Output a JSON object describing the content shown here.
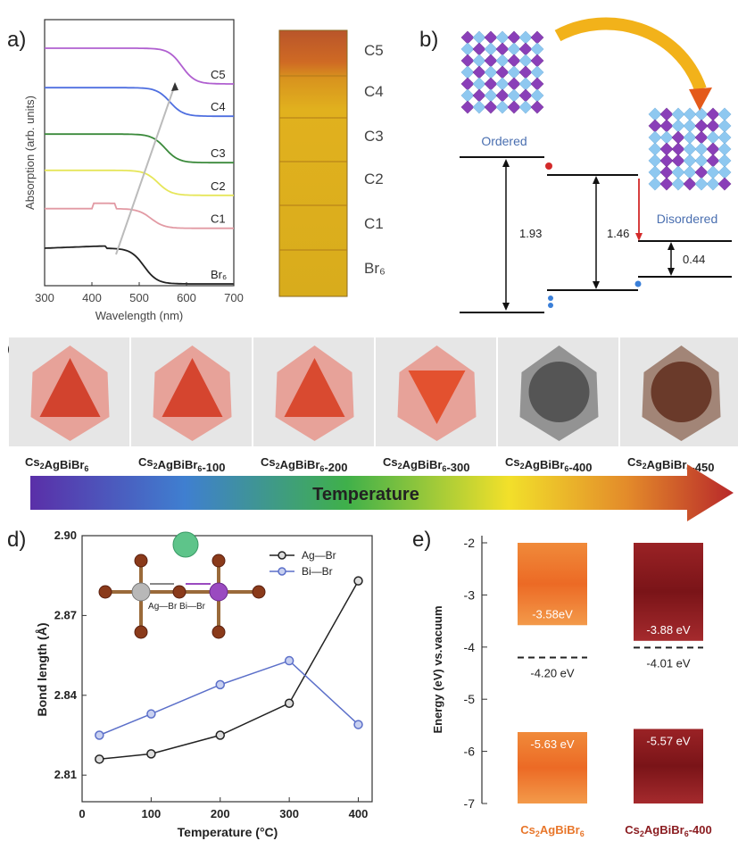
{
  "panels": {
    "a": "a)",
    "b": "b)",
    "c": "c)",
    "d": "d)",
    "e": "e)"
  },
  "chart_data": [
    {
      "id": "a",
      "type": "line",
      "xlabel": "Wavelength (nm)",
      "ylabel": "Absorption (arb. units)",
      "xlim": [
        300,
        700
      ],
      "xticks": [
        "300",
        "400",
        "500",
        "600",
        "700"
      ],
      "series": [
        {
          "name": "Br6",
          "label_display": "Br₆",
          "color": "#222222"
        },
        {
          "name": "C1",
          "label_display": "C1",
          "color": "#e29aa4"
        },
        {
          "name": "C2",
          "label_display": "C2",
          "color": "#e6e65a"
        },
        {
          "name": "C3",
          "label_display": "C3",
          "color": "#3b8a3b"
        },
        {
          "name": "C4",
          "label_display": "C4",
          "color": "#4f6fe0"
        },
        {
          "name": "C5",
          "label_display": "C5",
          "color": "#b060d0"
        }
      ],
      "photo_labels": [
        "C5",
        "C4",
        "C3",
        "C2",
        "C1",
        "Br₆"
      ],
      "photo_colors": [
        "#b9552a",
        "#d68a1f",
        "#e1b11e",
        "#e3b81f",
        "#deb21e",
        "#d8ac1c"
      ]
    },
    {
      "id": "b",
      "type": "diagram",
      "labels": {
        "ordered": "Ordered",
        "disordered": "Disordered"
      },
      "values": [
        "1.93",
        "1.46",
        "0.44"
      ]
    },
    {
      "id": "c",
      "type": "photo-row",
      "samples": [
        {
          "base": "Cs",
          "sub1": "2",
          "mid": "AgBiBr",
          "sub2": "6",
          "suffix": "",
          "color": "#d2432e"
        },
        {
          "base": "Cs",
          "sub1": "2",
          "mid": "AgBiBr",
          "sub2": "6",
          "suffix": "-100",
          "color": "#d5452f"
        },
        {
          "base": "Cs",
          "sub1": "2",
          "mid": "AgBiBr",
          "sub2": "6",
          "suffix": "-200",
          "color": "#d94a30"
        },
        {
          "base": "Cs",
          "sub1": "2",
          "mid": "AgBiBr",
          "sub2": "6",
          "suffix": "-300",
          "color": "#e3512f"
        },
        {
          "base": "Cs",
          "sub1": "2",
          "mid": "AgBiBr",
          "sub2": "6",
          "suffix": "-400",
          "color": "#555555"
        },
        {
          "base": "Cs",
          "sub1": "2",
          "mid": "AgBiBr",
          "sub2": "6",
          "suffix": "-450",
          "color": "#6a3a2a"
        }
      ],
      "arrow_label": "Temperature"
    },
    {
      "id": "d",
      "type": "line",
      "xlabel": "Temperature (°C)",
      "ylabel": "Bond length (Å)",
      "xlim": [
        0,
        420
      ],
      "ylim": [
        2.8,
        2.9
      ],
      "xticks": [
        0,
        100,
        200,
        300,
        400
      ],
      "yticks": [
        2.81,
        2.84,
        2.87,
        2.9
      ],
      "series": [
        {
          "name": "Ag—Br",
          "color": "#222222",
          "x": [
            25,
            100,
            200,
            300,
            400
          ],
          "y": [
            2.816,
            2.818,
            2.825,
            2.837,
            2.883
          ]
        },
        {
          "name": "Bi—Br",
          "color": "#5b6fc9",
          "x": [
            25,
            100,
            200,
            300,
            400
          ],
          "y": [
            2.825,
            2.833,
            2.844,
            2.853,
            2.829
          ]
        }
      ],
      "inset_label": "Ag—Br  Bi—Br"
    },
    {
      "id": "e",
      "type": "bar",
      "ylabel": "Energy (eV) vs.vacuum",
      "ylim": [
        -7,
        -2
      ],
      "yticks": [
        -2,
        -3,
        -4,
        -5,
        -6,
        -7
      ],
      "categories": [
        "Cs2AgBiBr6",
        "Cs2AgBiBr6-400"
      ],
      "cbm": [
        -3.58,
        -3.88
      ],
      "vbm": [
        -5.63,
        -5.57
      ],
      "fermi": [
        -4.2,
        -4.01
      ],
      "cbm_labels": [
        "-3.58eV",
        "-3.88 eV"
      ],
      "vbm_labels": [
        "-5.63 eV",
        "-5.57 eV"
      ],
      "fermi_labels": [
        "-4.20 eV",
        "-4.01 eV"
      ],
      "colors": [
        "#ee7a2a",
        "#8a1b1f"
      ]
    }
  ]
}
